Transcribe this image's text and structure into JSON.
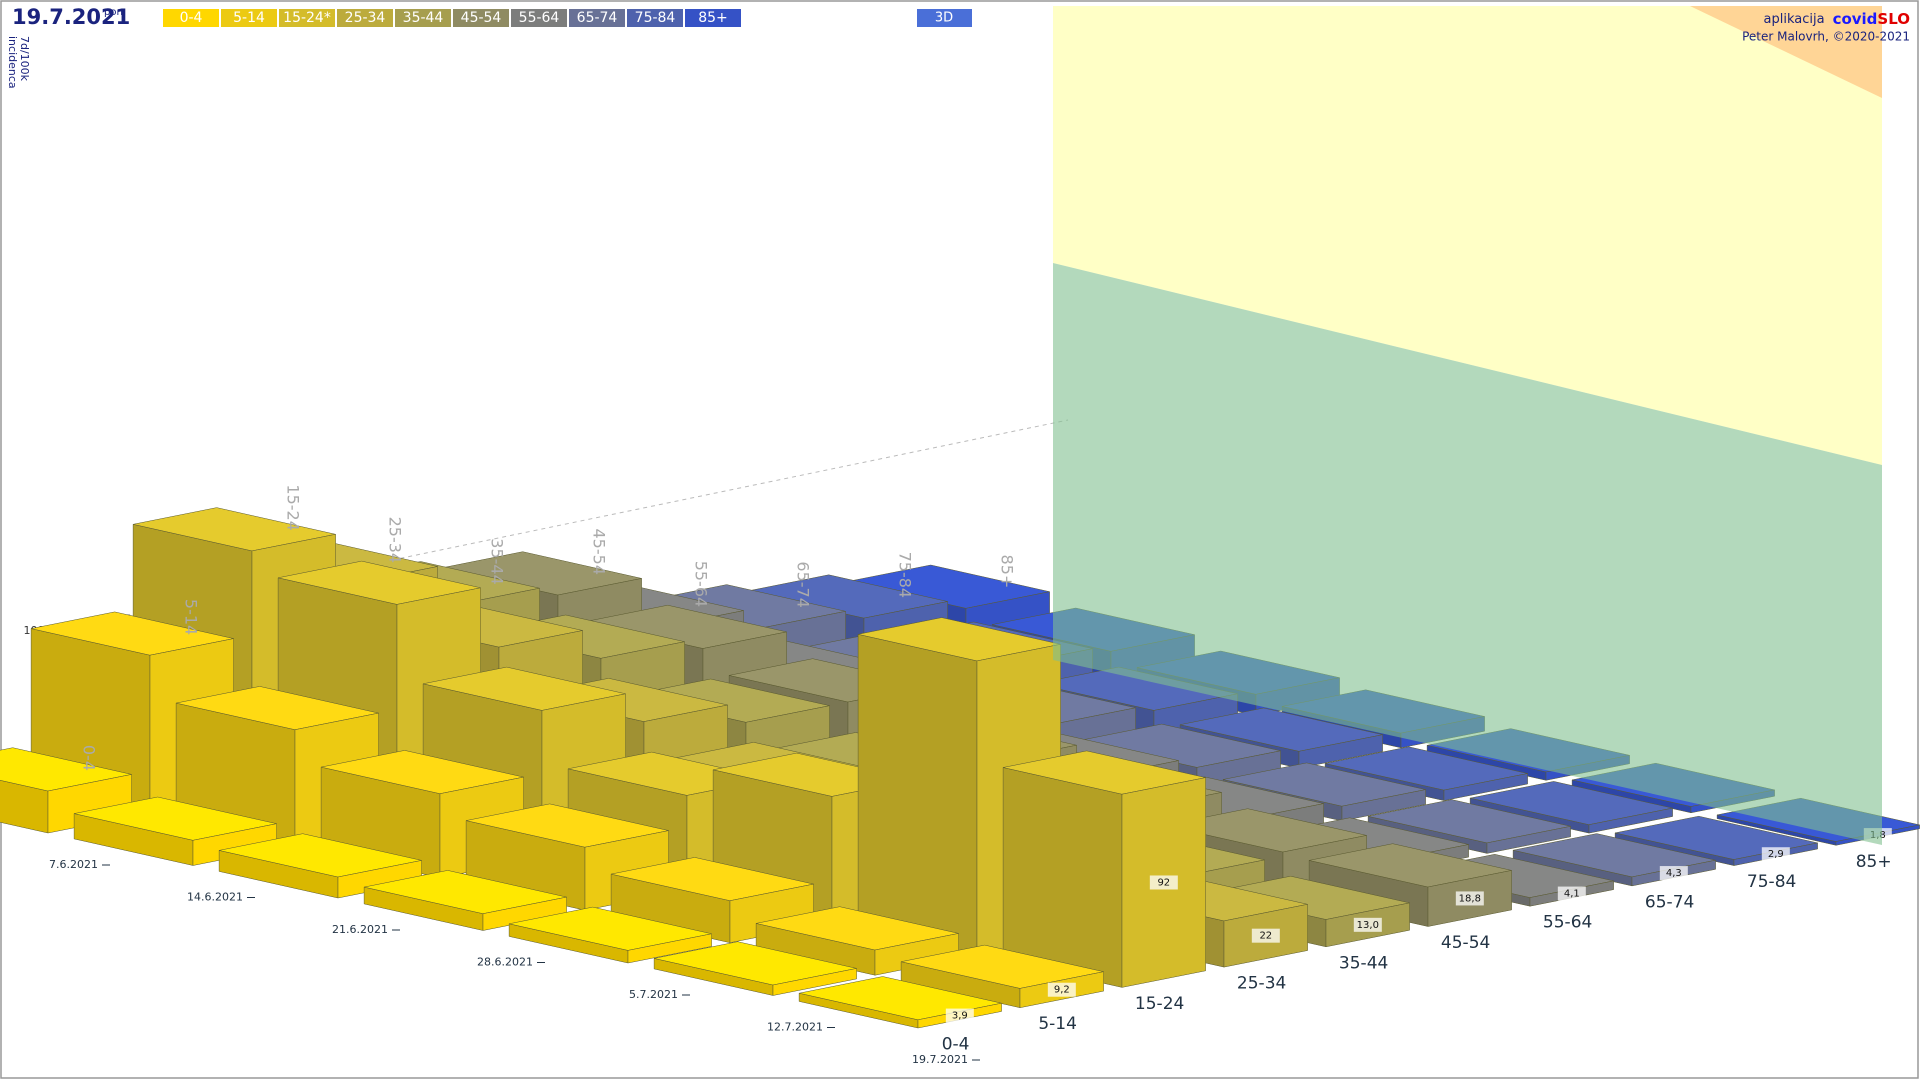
{
  "chart_data": {
    "type": "bar3d",
    "date": "19.7.2021",
    "weekday": "pon",
    "mode": "3D",
    "y_label_lines": [
      "7d/100k",
      "incidenca"
    ],
    "credit": {
      "app": "aplikacija",
      "brand1": "covid",
      "brand2": "SLO",
      "author": "Peter Malovrh, ©2020-2021"
    },
    "x": [
      "7.6.2021",
      "14.6.2021",
      "21.6.2021",
      "28.6.2021",
      "5.7.2021",
      "12.7.2021",
      "19.7.2021"
    ],
    "groups": [
      "0-4",
      "5-14",
      "15-24",
      "25-34",
      "35-44",
      "45-54",
      "55-64",
      "65-74",
      "75-84",
      "85+"
    ],
    "series": [
      {
        "name": "0-4",
        "color": "#ffd700",
        "values": [
          20,
          12,
          10,
          8,
          6,
          5,
          3.9
        ],
        "value_labels": [
          null,
          null,
          null,
          null,
          null,
          null,
          "3,9"
        ]
      },
      {
        "name": "5-14",
        "color": "#ecca12",
        "values": [
          75,
          55,
          40,
          30,
          20,
          12,
          9.2
        ],
        "value_labels": [
          null,
          null,
          null,
          null,
          null,
          null,
          "9,2"
        ]
      },
      {
        "name": "15-24*",
        "color": "#d4bc2a",
        "values": [
          115,
          105,
          70,
          45,
          60,
          140,
          92
        ],
        "value_labels": [
          null,
          null,
          null,
          null,
          null,
          null,
          "92"
        ]
      },
      {
        "name": "25-34",
        "color": "#bcab3c",
        "values": [
          90,
          75,
          55,
          40,
          30,
          28,
          22
        ],
        "value_labels": [
          null,
          null,
          null,
          null,
          null,
          null,
          "22"
        ]
      },
      {
        "name": "35-44",
        "color": "#a69e4e",
        "values": [
          70,
          60,
          45,
          35,
          25,
          18,
          13.0
        ],
        "value_labels": [
          null,
          null,
          null,
          null,
          null,
          null,
          "13,0"
        ]
      },
      {
        "name": "45-54",
        "color": "#8f8b62",
        "values": [
          65,
          55,
          45,
          32,
          25,
          20,
          18.8
        ],
        "value_labels": [
          null,
          null,
          null,
          null,
          null,
          null,
          "18,8"
        ]
      },
      {
        "name": "55-64",
        "color": "#7c7d7c",
        "values": [
          40,
          30,
          22,
          15,
          10,
          6,
          4.1
        ],
        "value_labels": [
          null,
          null,
          null,
          null,
          null,
          null,
          "4,1"
        ]
      },
      {
        "name": "65-74",
        "color": "#687196",
        "values": [
          30,
          22,
          15,
          10,
          7,
          5,
          4.3
        ],
        "value_labels": [
          null,
          null,
          null,
          null,
          null,
          null,
          "4,3"
        ]
      },
      {
        "name": "75-84",
        "color": "#4e62ad",
        "values": [
          25,
          18,
          12,
          8,
          5,
          4,
          2.9
        ],
        "value_labels": [
          null,
          null,
          null,
          null,
          null,
          null,
          "2,9"
        ]
      },
      {
        "name": "85+",
        "color": "#3552c6",
        "values": [
          20,
          15,
          10,
          7,
          4,
          3,
          1.8
        ],
        "value_labels": [
          null,
          null,
          null,
          null,
          null,
          null,
          "1,8"
        ]
      }
    ],
    "ylim": [
      0,
      200
    ],
    "yticks": [
      100
    ],
    "grid": true
  }
}
